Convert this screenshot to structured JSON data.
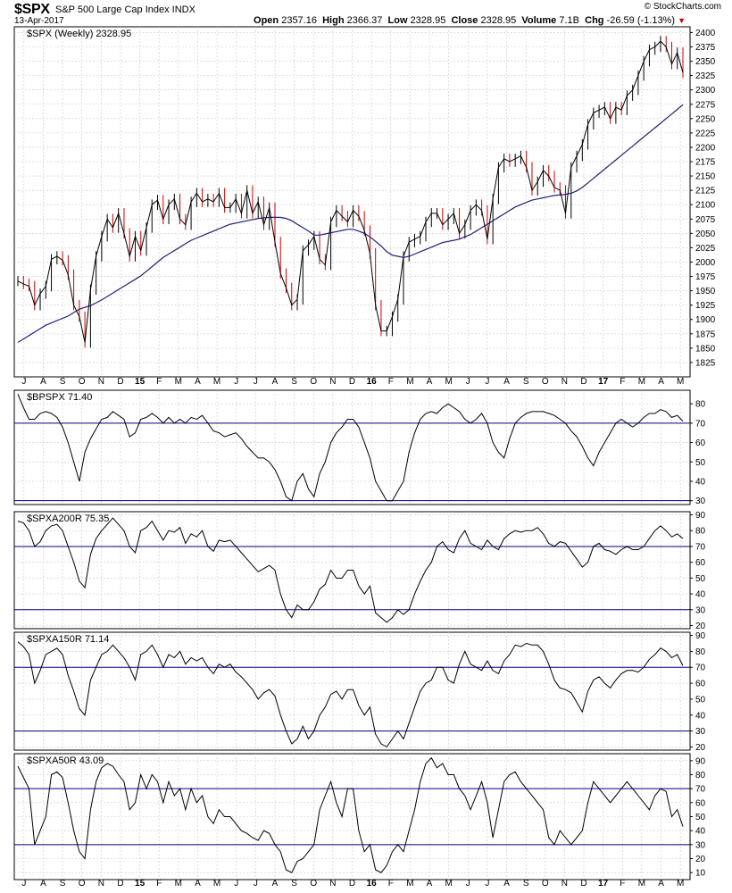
{
  "header": {
    "symbol": "$SPX",
    "description": "S&P 500 Large Cap Index INDX",
    "brand": "© StockCharts.com",
    "date": "13-Apr-2017",
    "quote": {
      "open_label": "Open",
      "open": "2357.16",
      "high_label": "High",
      "high": "2366.37",
      "low_label": "Low",
      "low": "2328.95",
      "close_label": "Close",
      "close": "2328.95",
      "volume_label": "Volume",
      "volume": "7.1B",
      "change_label": "Chg",
      "change": "-26.59 (-1.13%)",
      "change_arrow": "▼"
    }
  },
  "colors": {
    "price": "#000000",
    "up_bar": "#000000",
    "down_bar": "#cc0000",
    "moving_average": "#1f1f7a",
    "indicator_line": "#000000",
    "reference_line": "#000080",
    "grid": "#c8c8c8",
    "change_arrow": "#cc0000"
  },
  "x_axis": {
    "labels": [
      "J",
      "A",
      "S",
      "O",
      "N",
      "D",
      "15",
      "F",
      "M",
      "A",
      "M",
      "J",
      "J",
      "A",
      "S",
      "O",
      "N",
      "D",
      "16",
      "F",
      "M",
      "A",
      "M",
      "J",
      "J",
      "A",
      "S",
      "O",
      "N",
      "D",
      "17",
      "F",
      "M",
      "A",
      "M"
    ],
    "bold_labels": [
      "15",
      "16",
      "17"
    ]
  },
  "chart_data": [
    {
      "type": "line",
      "id": "price",
      "legend": "$SPX (Weekly) 2328.95",
      "ylim": [
        1800,
        2410
      ],
      "yticks": [
        1825,
        1850,
        1875,
        1900,
        1925,
        1950,
        1975,
        2000,
        2025,
        2050,
        2075,
        2100,
        2125,
        2150,
        2175,
        2200,
        2225,
        2250,
        2275,
        2300,
        2325,
        2350,
        2375,
        2400
      ],
      "series": [
        {
          "values": [
            1967,
            1962,
            1958,
            1925,
            1945,
            1958,
            2005,
            2010,
            2003,
            1978,
            1925,
            1905,
            1860,
            1952,
            2010,
            2045,
            2075,
            2060,
            2085,
            2050,
            2010,
            2045,
            2020,
            2060,
            2100,
            2108,
            2075,
            2100,
            2110,
            2075,
            2065,
            2105,
            2120,
            2105,
            2110,
            2105,
            2120,
            2095,
            2095,
            2110,
            2085,
            2125,
            2085,
            2105,
            2065,
            2095,
            2035,
            1980,
            1955,
            1925,
            1935,
            2020,
            2030,
            2045,
            2005,
            1995,
            2070,
            2090,
            2080,
            2070,
            2090,
            2080,
            2055,
            2015,
            1925,
            1880,
            1880,
            1905,
            1935,
            2010,
            2035,
            2040,
            2045,
            2070,
            2085,
            2085,
            2065,
            2075,
            2085,
            2050,
            2065,
            2090,
            2100,
            2090,
            2040,
            2110,
            2165,
            2180,
            2175,
            2180,
            2185,
            2165,
            2125,
            2140,
            2160,
            2150,
            2130,
            2125,
            2085,
            2165,
            2185,
            2205,
            2240,
            2260,
            2265,
            2270,
            2250,
            2270,
            2265,
            2290,
            2300,
            2325,
            2350,
            2370,
            2375,
            2385,
            2375,
            2345,
            2365,
            2330
          ]
        },
        {
          "values": [
            1860,
            1866,
            1872,
            1878,
            1884,
            1890,
            1894,
            1898,
            1902,
            1906,
            1912,
            1918,
            1921,
            1924,
            1929,
            1934,
            1940,
            1946,
            1952,
            1958,
            1964,
            1970,
            1976,
            1984,
            1992,
            2000,
            2008,
            2014,
            2020,
            2026,
            2032,
            2038,
            2042,
            2046,
            2050,
            2054,
            2058,
            2062,
            2066,
            2068,
            2070,
            2072,
            2074,
            2076,
            2077,
            2078,
            2078,
            2078,
            2076,
            2072,
            2066,
            2060,
            2054,
            2047,
            2047,
            2049,
            2051,
            2053,
            2055,
            2057,
            2057,
            2054,
            2050,
            2044,
            2036,
            2028,
            2018,
            2012,
            2010,
            2008,
            2010,
            2014,
            2018,
            2022,
            2026,
            2030,
            2034,
            2036,
            2038,
            2040,
            2044,
            2048,
            2054,
            2060,
            2066,
            2072,
            2078,
            2084,
            2090,
            2096,
            2100,
            2104,
            2108,
            2110,
            2112,
            2114,
            2116,
            2117,
            2118,
            2120,
            2124,
            2130,
            2138,
            2146,
            2154,
            2162,
            2170,
            2178,
            2186,
            2194,
            2202,
            2210,
            2218,
            2226,
            2234,
            2242,
            2250,
            2258,
            2266,
            2274
          ]
        }
      ]
    },
    {
      "type": "line",
      "id": "bpspx",
      "legend": "$BPSPX 71.40",
      "ylim": [
        28,
        87
      ],
      "yticks": [
        30,
        40,
        50,
        60,
        70,
        80
      ],
      "reference_lines": [
        70,
        30
      ],
      "series": [
        {
          "values": [
            85,
            78,
            72,
            72,
            75,
            76,
            75,
            73,
            68,
            60,
            50,
            40,
            55,
            62,
            67,
            72,
            73,
            76,
            74,
            72,
            63,
            65,
            72,
            73,
            75,
            73,
            70,
            73,
            70,
            72,
            70,
            73,
            72,
            74,
            70,
            66,
            65,
            63,
            64,
            65,
            62,
            58,
            55,
            52,
            52,
            50,
            46,
            40,
            32,
            30,
            40,
            44,
            36,
            32,
            44,
            50,
            60,
            65,
            68,
            72,
            72,
            68,
            60,
            52,
            40,
            35,
            30,
            30,
            35,
            40,
            55,
            65,
            72,
            75,
            76,
            75,
            78,
            80,
            78,
            76,
            72,
            70,
            72,
            75,
            70,
            60,
            55,
            52,
            62,
            70,
            73,
            75,
            76,
            76,
            76,
            75,
            74,
            72,
            70,
            66,
            63,
            58,
            52,
            48,
            55,
            60,
            65,
            70,
            72,
            70,
            68,
            70,
            73,
            75,
            75,
            77,
            76,
            73,
            74,
            71
          ]
        }
      ]
    },
    {
      "type": "line",
      "id": "spxa200r",
      "legend": "$SPXA200R 75.35",
      "ylim": [
        18,
        92
      ],
      "yticks": [
        20,
        30,
        40,
        50,
        60,
        70,
        80,
        90
      ],
      "reference_lines": [
        70,
        30
      ],
      "series": [
        {
          "values": [
            86,
            85,
            80,
            70,
            73,
            80,
            83,
            84,
            80,
            70,
            60,
            48,
            44,
            65,
            75,
            80,
            84,
            88,
            84,
            80,
            70,
            66,
            80,
            82,
            86,
            80,
            74,
            80,
            79,
            82,
            72,
            78,
            76,
            80,
            70,
            67,
            74,
            73,
            74,
            70,
            66,
            62,
            58,
            54,
            56,
            58,
            55,
            40,
            30,
            25,
            33,
            30,
            30,
            35,
            43,
            46,
            55,
            50,
            50,
            55,
            55,
            45,
            40,
            45,
            28,
            25,
            22,
            25,
            30,
            27,
            30,
            40,
            48,
            55,
            60,
            70,
            73,
            68,
            66,
            75,
            80,
            72,
            70,
            68,
            74,
            70,
            68,
            75,
            78,
            80,
            79,
            80,
            80,
            82,
            78,
            72,
            70,
            73,
            72,
            67,
            62,
            57,
            60,
            70,
            72,
            68,
            67,
            65,
            68,
            70,
            68,
            68,
            70,
            75,
            80,
            83,
            80,
            76,
            78,
            75
          ]
        }
      ]
    },
    {
      "type": "line",
      "id": "spxa150r",
      "legend": "$SPXA150R 71.14",
      "ylim": [
        18,
        92
      ],
      "yticks": [
        20,
        30,
        40,
        50,
        60,
        70,
        80,
        90
      ],
      "reference_lines": [
        70,
        30
      ],
      "series": [
        {
          "values": [
            86,
            83,
            78,
            60,
            68,
            78,
            80,
            82,
            78,
            65,
            55,
            44,
            40,
            62,
            70,
            78,
            80,
            84,
            80,
            76,
            70,
            62,
            78,
            80,
            84,
            78,
            70,
            78,
            76,
            80,
            72,
            76,
            74,
            76,
            70,
            66,
            72,
            70,
            72,
            67,
            64,
            60,
            56,
            50,
            54,
            56,
            52,
            40,
            30,
            22,
            25,
            33,
            25,
            30,
            40,
            45,
            53,
            55,
            50,
            56,
            56,
            46,
            40,
            45,
            28,
            22,
            20,
            25,
            30,
            25,
            35,
            45,
            55,
            60,
            62,
            70,
            70,
            62,
            60,
            72,
            80,
            72,
            70,
            68,
            74,
            68,
            66,
            74,
            78,
            84,
            83,
            85,
            84,
            84,
            80,
            72,
            62,
            57,
            56,
            54,
            48,
            42,
            55,
            62,
            64,
            60,
            57,
            62,
            66,
            68,
            68,
            67,
            70,
            75,
            78,
            82,
            80,
            76,
            78,
            71
          ]
        }
      ]
    },
    {
      "type": "line",
      "id": "spxa50r",
      "legend": "$SPXA50R 43.09",
      "ylim": [
        5,
        95
      ],
      "yticks": [
        10,
        20,
        30,
        40,
        50,
        60,
        70,
        80,
        90
      ],
      "reference_lines": [
        70,
        30
      ],
      "series": [
        {
          "values": [
            86,
            78,
            70,
            30,
            40,
            50,
            80,
            82,
            78,
            60,
            40,
            25,
            20,
            55,
            75,
            85,
            88,
            86,
            80,
            75,
            55,
            60,
            80,
            70,
            80,
            75,
            60,
            75,
            65,
            70,
            55,
            70,
            60,
            65,
            50,
            45,
            55,
            50,
            50,
            45,
            40,
            38,
            35,
            33,
            40,
            38,
            30,
            25,
            12,
            10,
            18,
            20,
            25,
            30,
            55,
            65,
            75,
            60,
            50,
            70,
            70,
            40,
            25,
            30,
            12,
            10,
            15,
            25,
            30,
            25,
            40,
            55,
            75,
            88,
            92,
            85,
            88,
            80,
            80,
            70,
            65,
            55,
            65,
            75,
            60,
            35,
            55,
            75,
            80,
            82,
            75,
            70,
            65,
            60,
            55,
            35,
            30,
            40,
            35,
            30,
            35,
            40,
            60,
            75,
            70,
            65,
            60,
            65,
            70,
            75,
            70,
            65,
            60,
            55,
            65,
            70,
            68,
            50,
            55,
            43
          ]
        }
      ]
    }
  ]
}
